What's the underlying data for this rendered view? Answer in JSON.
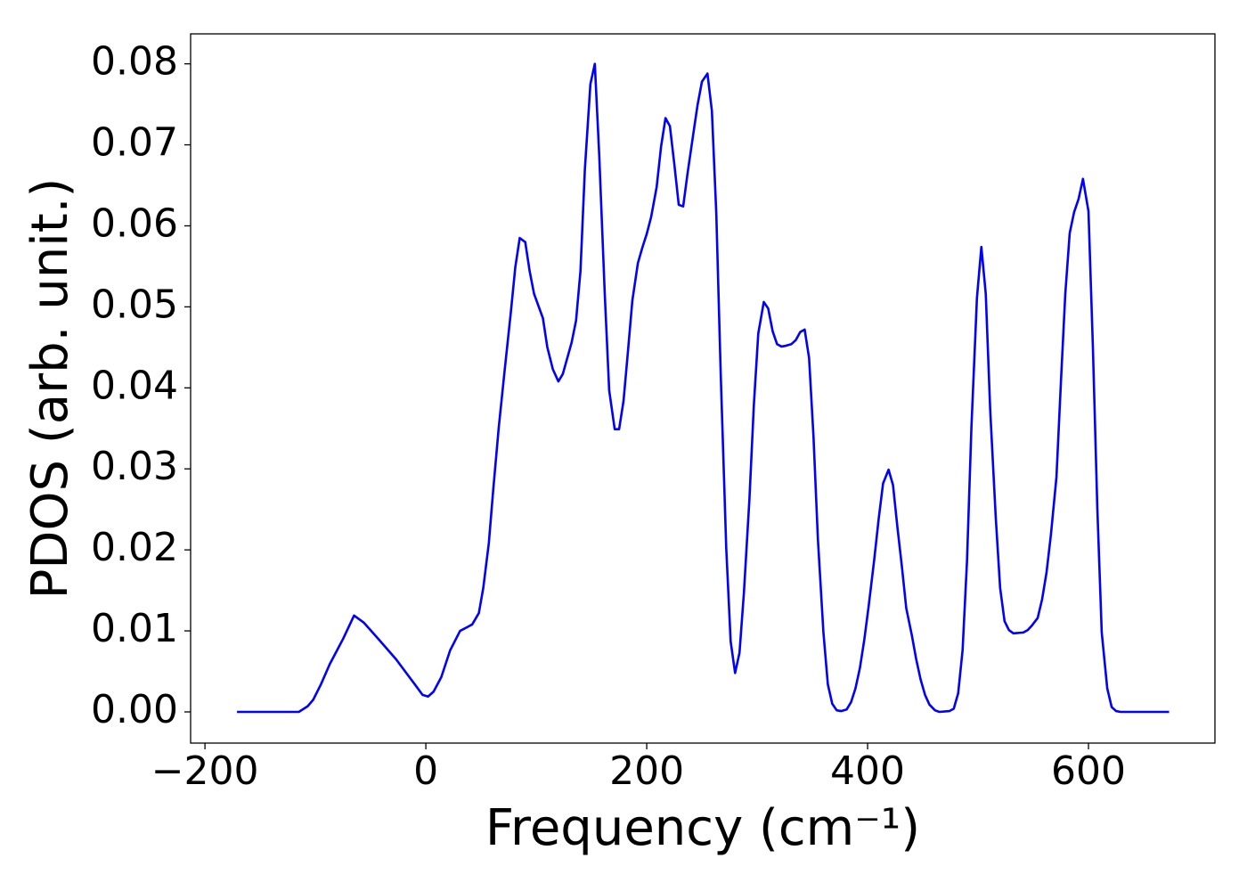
{
  "chart_data": {
    "type": "line",
    "xlabel": "Frequency (cm⁻¹)",
    "ylabel": "PDOS (arb. unit.)",
    "x": [
      -171,
      -115,
      -107,
      -102,
      -95,
      -87,
      -75,
      -65,
      -56,
      -43,
      -27,
      -10,
      -3,
      2,
      7,
      14,
      22,
      31,
      38,
      42,
      48,
      52,
      57,
      61,
      66,
      71,
      77,
      81,
      85,
      90,
      94,
      98,
      106,
      110,
      115,
      120,
      124,
      132,
      136,
      140,
      144,
      149,
      153,
      157,
      162,
      166,
      171,
      175,
      179,
      183,
      187,
      192,
      196,
      200,
      204,
      209,
      213,
      217,
      221,
      225,
      229,
      233,
      237,
      242,
      246,
      250,
      255,
      259,
      263,
      267,
      272,
      276,
      280,
      284,
      288,
      293,
      297,
      301,
      306,
      310,
      314,
      318,
      322,
      326,
      331,
      335,
      339,
      343,
      347,
      351,
      355,
      360,
      364,
      368,
      372,
      376,
      381,
      385,
      389,
      393,
      397,
      401,
      406,
      410,
      414,
      419,
      423,
      427,
      431,
      435,
      440,
      444,
      448,
      452,
      456,
      461,
      465,
      474,
      478,
      482,
      486,
      490,
      494,
      499,
      503,
      507,
      511,
      516,
      520,
      524,
      528,
      532,
      541,
      545,
      549,
      554,
      558,
      562,
      566,
      571,
      575,
      579,
      583,
      587,
      591,
      595,
      600,
      604,
      608,
      612,
      617,
      621,
      625,
      629,
      673
    ],
    "values": [
      0,
      0,
      0.0007,
      0.0015,
      0.0034,
      0.0059,
      0.009,
      0.0119,
      0.011,
      0.009,
      0.0065,
      0.0034,
      0.0021,
      0.0019,
      0.0025,
      0.0043,
      0.0076,
      0.01,
      0.0105,
      0.0108,
      0.0122,
      0.0153,
      0.0208,
      0.0274,
      0.0351,
      0.0417,
      0.0494,
      0.0549,
      0.0585,
      0.058,
      0.0544,
      0.0516,
      0.0486,
      0.045,
      0.0423,
      0.0408,
      0.0417,
      0.0456,
      0.0483,
      0.0544,
      0.067,
      0.0775,
      0.08,
      0.0687,
      0.0516,
      0.0397,
      0.0349,
      0.0349,
      0.0384,
      0.0445,
      0.0508,
      0.0554,
      0.0573,
      0.059,
      0.0611,
      0.0648,
      0.0698,
      0.0733,
      0.0723,
      0.0676,
      0.0626,
      0.0624,
      0.0665,
      0.0712,
      0.0749,
      0.0778,
      0.0788,
      0.0742,
      0.0615,
      0.0417,
      0.0202,
      0.0087,
      0.0048,
      0.0073,
      0.0147,
      0.0263,
      0.0379,
      0.0467,
      0.0506,
      0.0498,
      0.047,
      0.0454,
      0.0451,
      0.0452,
      0.0454,
      0.0459,
      0.0469,
      0.0472,
      0.0437,
      0.034,
      0.0213,
      0.0098,
      0.0034,
      0.001,
      0.0002,
      0.0001,
      0.0003,
      0.0012,
      0.0029,
      0.0054,
      0.0089,
      0.0131,
      0.0188,
      0.0238,
      0.0282,
      0.0299,
      0.028,
      0.0228,
      0.018,
      0.0128,
      0.0095,
      0.0065,
      0.004,
      0.0021,
      0.0009,
      0.0002,
      0,
      0.0001,
      0.0004,
      0.0023,
      0.0076,
      0.0186,
      0.0351,
      0.0511,
      0.0574,
      0.0516,
      0.0373,
      0.0241,
      0.0153,
      0.0112,
      0.0101,
      0.0097,
      0.0098,
      0.0101,
      0.0107,
      0.0116,
      0.0139,
      0.0172,
      0.0219,
      0.029,
      0.0406,
      0.0516,
      0.0591,
      0.0617,
      0.0633,
      0.0658,
      0.0618,
      0.045,
      0.0252,
      0.0098,
      0.0029,
      0.0006,
      0.0001,
      0,
      0
    ],
    "color": "#0000ff",
    "xlim": [
      -213,
      714.5
    ],
    "ylim": [
      -0.00385,
      0.0837
    ],
    "xticks": [
      {
        "value": -200,
        "label": "−200"
      },
      0,
      200,
      400,
      600
    ],
    "yticks": [
      {
        "value": 0,
        "label": "0.00"
      },
      {
        "value": 0.01,
        "label": "0.01"
      },
      {
        "value": 0.02,
        "label": "0.02"
      },
      {
        "value": 0.03,
        "label": "0.03"
      },
      {
        "value": 0.04,
        "label": "0.04"
      },
      {
        "value": 0.05,
        "label": "0.05"
      },
      {
        "value": 0.06,
        "label": "0.06"
      },
      {
        "value": 0.07,
        "label": "0.07"
      },
      {
        "value": 0.08,
        "label": "0.08"
      }
    ],
    "grid": false
  }
}
